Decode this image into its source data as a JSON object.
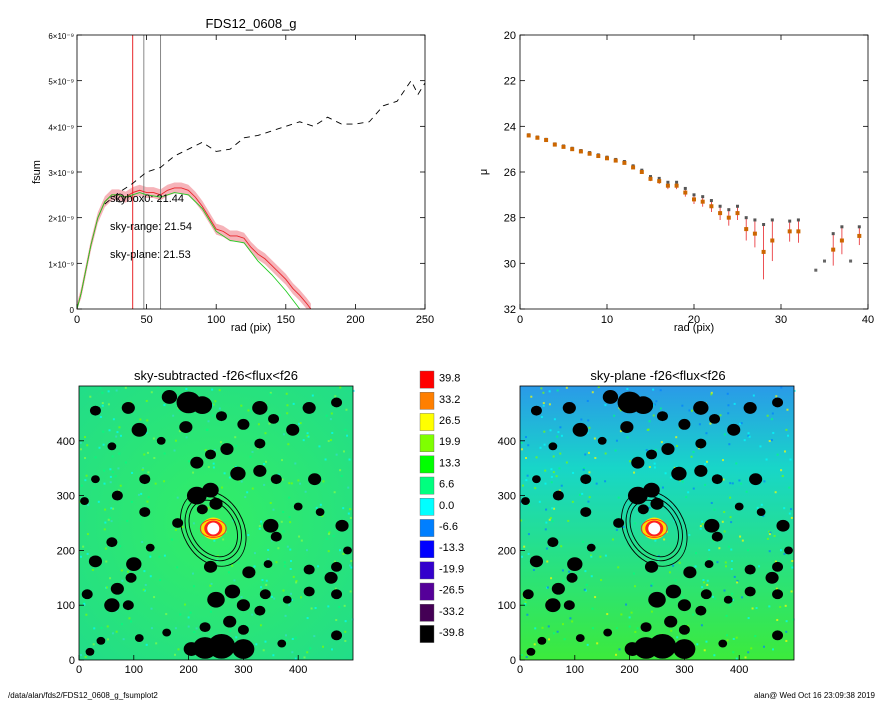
{
  "footer": {
    "path": "/data/alan/fds2/FDS12_0608_g_fsumplot2",
    "stamp": "alan@  Wed Oct 16 23:09:38 2019"
  },
  "chart_data": [
    {
      "type": "line",
      "title": "FDS12_0608_g",
      "xlabel": "rad (pix)",
      "ylabel": "fsum",
      "xlim": [
        0,
        250
      ],
      "ylim": [
        0,
        6e-09
      ],
      "xticks": [
        "0",
        "50",
        "100",
        "150",
        "200",
        "250"
      ],
      "yticks": [
        "0",
        "1×10⁻⁹",
        "2×10⁻⁹",
        "3×10⁻⁹",
        "4×10⁻⁹",
        "5×10⁻⁹",
        "6×10⁻⁹"
      ],
      "vlines": [
        {
          "x": 40,
          "color": "#e8262b"
        },
        {
          "x": 48,
          "color": "#888888"
        },
        {
          "x": 60,
          "color": "#888888"
        }
      ],
      "annotations": [
        {
          "text": "skybox0: 21.44",
          "color": "#000000"
        },
        {
          "text": "sky-range: 21.54",
          "color": "#e8262b"
        },
        {
          "text": "sky-plane: 21.53",
          "color": "#22cc22"
        }
      ],
      "series": [
        {
          "style": "dashed",
          "color": "#000000",
          "x": [
            20,
            30,
            40,
            50,
            60,
            70,
            80,
            90,
            100,
            110,
            120,
            130,
            140,
            150,
            160,
            170,
            180,
            190,
            200,
            210,
            220,
            230,
            240,
            245,
            250
          ],
          "y": [
            2.3e-09,
            2.55e-09,
            2.75e-09,
            3e-09,
            3.1e-09,
            3.35e-09,
            3.5e-09,
            3.65e-09,
            3.45e-09,
            3.5e-09,
            3.75e-09,
            3.8e-09,
            3.9e-09,
            4e-09,
            4.1e-09,
            4e-09,
            4.2e-09,
            4.05e-09,
            4.05e-09,
            4.1e-09,
            4.45e-09,
            4.55e-09,
            5e-09,
            4.7e-09,
            4.95e-09
          ]
        },
        {
          "style": "solid",
          "color": "#e8262b",
          "band": "#f4a0a8",
          "x": [
            0,
            3,
            6,
            10,
            15,
            20,
            25,
            30,
            35,
            40,
            45,
            50,
            55,
            60,
            65,
            70,
            75,
            80,
            85,
            90,
            95,
            100,
            105,
            110,
            115,
            120,
            125,
            130,
            135,
            140,
            145,
            150,
            155,
            160,
            165,
            168
          ],
          "y": [
            0,
            3.5e-10,
            8e-10,
            1.4e-09,
            2e-09,
            2.35e-09,
            2.5e-09,
            2.5e-09,
            2.45e-09,
            2.55e-09,
            2.6e-09,
            2.55e-09,
            2.55e-09,
            2.5e-09,
            2.6e-09,
            2.65e-09,
            2.65e-09,
            2.6e-09,
            2.45e-09,
            2.25e-09,
            2e-09,
            1.75e-09,
            1.7e-09,
            1.6e-09,
            1.6e-09,
            1.55e-09,
            1.35e-09,
            1.2e-09,
            1.1e-09,
            9.5e-10,
            8e-10,
            6.5e-10,
            4.5e-10,
            3e-10,
            1.2e-10,
            0.0
          ]
        },
        {
          "style": "solid",
          "color": "#22cc22",
          "x": [
            0,
            3,
            6,
            10,
            15,
            20,
            25,
            30,
            35,
            40,
            45,
            50,
            60,
            70,
            80,
            90,
            100,
            110,
            120,
            130,
            140,
            150,
            155,
            160
          ],
          "y": [
            0,
            3.5e-10,
            8e-10,
            1.4e-09,
            2e-09,
            2.35e-09,
            2.5e-09,
            2.5e-09,
            2.45e-09,
            2.5e-09,
            2.55e-09,
            2.5e-09,
            2.45e-09,
            2.55e-09,
            2.5e-09,
            2.2e-09,
            1.7e-09,
            1.5e-09,
            1.45e-09,
            1.05e-09,
            7.5e-10,
            4e-10,
            2e-10,
            0.0
          ]
        }
      ]
    },
    {
      "type": "scatter",
      "title": "",
      "xlabel": "rad (pix)",
      "ylabel": "μ",
      "xlim": [
        0,
        40
      ],
      "ylim": [
        32,
        20
      ],
      "xticks": [
        "0",
        "10",
        "20",
        "30",
        "40"
      ],
      "yticks": [
        "20",
        "22",
        "24",
        "26",
        "28",
        "30",
        "32"
      ],
      "series": [
        {
          "color": "#cc6600",
          "errcolor": "#e8262b",
          "x": [
            1,
            2,
            3,
            4,
            5,
            6,
            7,
            8,
            9,
            10,
            11,
            12,
            13,
            14,
            15,
            16,
            17,
            18,
            19,
            20,
            21,
            22,
            23,
            24,
            25,
            26,
            27,
            28,
            29,
            31,
            32,
            34,
            35,
            36,
            37,
            38,
            39
          ],
          "y": [
            24.4,
            24.5,
            24.6,
            24.8,
            24.9,
            25.0,
            25.1,
            25.2,
            25.3,
            25.4,
            25.5,
            25.6,
            25.8,
            26.0,
            26.3,
            26.4,
            26.6,
            26.6,
            26.9,
            27.2,
            27.3,
            27.5,
            27.8,
            28.0,
            27.8,
            28.5,
            28.7,
            29.5,
            29.0,
            28.6,
            28.6,
            30.3,
            29.9,
            29.4,
            29.0,
            29.9,
            28.8
          ],
          "err": [
            0.03,
            0.03,
            0.03,
            0.03,
            0.04,
            0.04,
            0.04,
            0.05,
            0.05,
            0.05,
            0.05,
            0.06,
            0.07,
            0.08,
            0.1,
            0.12,
            0.15,
            0.15,
            0.18,
            0.2,
            0.22,
            0.25,
            0.3,
            0.35,
            0.3,
            0.5,
            0.6,
            1.2,
            0.9,
            0.45,
            0.5,
            0,
            0,
            0.7,
            0.6,
            0,
            0.4
          ]
        }
      ]
    },
    {
      "type": "heatmap",
      "title": "sky-subtracted -f26<flux<f26",
      "xlim": [
        0,
        500
      ],
      "ylim": [
        0,
        500
      ],
      "xticks": [
        "0",
        "100",
        "200",
        "300",
        "400"
      ],
      "yticks": [
        "0",
        "100",
        "200",
        "300",
        "400"
      ]
    },
    {
      "type": "heatmap",
      "title": "sky-plane -f26<flux<f26",
      "xlim": [
        0,
        500
      ],
      "ylim": [
        0,
        500
      ],
      "xticks": [
        "0",
        "100",
        "200",
        "300",
        "400"
      ],
      "yticks": [
        "0",
        "100",
        "200",
        "300",
        "400"
      ]
    },
    {
      "type": "colorbar",
      "levels": [
        {
          "label": "39.8",
          "color": "#ff0000"
        },
        {
          "label": "33.2",
          "color": "#ff7f00"
        },
        {
          "label": "26.5",
          "color": "#ffff00"
        },
        {
          "label": "19.9",
          "color": "#7fff00"
        },
        {
          "label": "13.3",
          "color": "#00ff00"
        },
        {
          "label": "6.6",
          "color": "#00ff7f"
        },
        {
          "label": "0.0",
          "color": "#00ffff"
        },
        {
          "label": "-6.6",
          "color": "#007fff"
        },
        {
          "label": "-13.3",
          "color": "#0000ff"
        },
        {
          "label": "-19.9",
          "color": "#3300cc"
        },
        {
          "label": "-26.5",
          "color": "#550099"
        },
        {
          "label": "-33.2",
          "color": "#440055"
        },
        {
          "label": "-39.8",
          "color": "#000000"
        }
      ]
    }
  ]
}
